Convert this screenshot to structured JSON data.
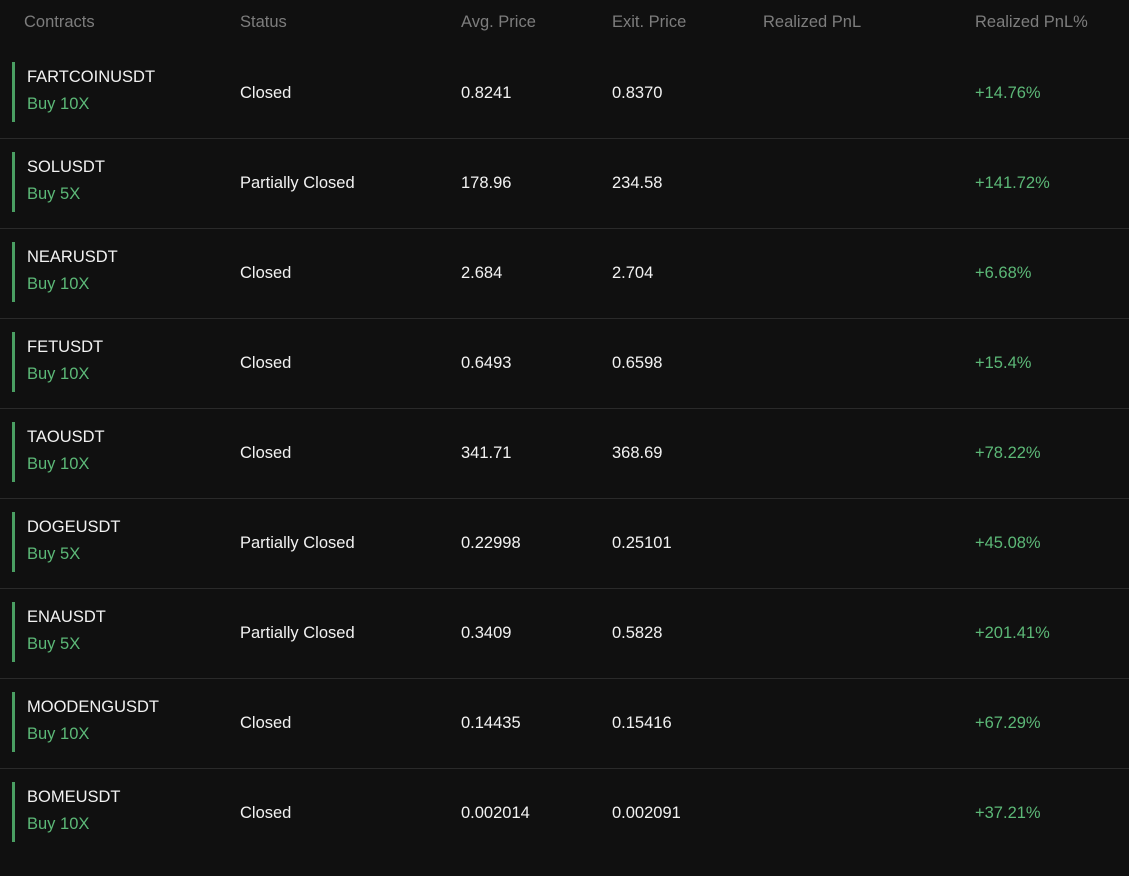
{
  "header": {
    "columns": [
      "Contracts",
      "Status",
      "Avg. Price",
      "Exit. Price",
      "Realized PnL",
      "Realized PnL%"
    ]
  },
  "table": {
    "rows": [
      {
        "contract": "FARTCOINUSDT",
        "side": "Buy 10X",
        "status": "Closed",
        "avg_price": "0.8241",
        "exit_price": "0.8370",
        "pnl_pct": "+14.76%"
      },
      {
        "contract": "SOLUSDT",
        "side": "Buy 5X",
        "status": "Partially Closed",
        "avg_price": "178.96",
        "exit_price": "234.58",
        "pnl_pct": "+141.72%"
      },
      {
        "contract": "NEARUSDT",
        "side": "Buy 10X",
        "status": "Closed",
        "avg_price": "2.684",
        "exit_price": "2.704",
        "pnl_pct": "+6.68%"
      },
      {
        "contract": "FETUSDT",
        "side": "Buy 10X",
        "status": "Closed",
        "avg_price": "0.6493",
        "exit_price": "0.6598",
        "pnl_pct": "+15.4%"
      },
      {
        "contract": "TAOUSDT",
        "side": "Buy 10X",
        "status": "Closed",
        "avg_price": "341.71",
        "exit_price": "368.69",
        "pnl_pct": "+78.22%"
      },
      {
        "contract": "DOGEUSDT",
        "side": "Buy 5X",
        "status": "Partially Closed",
        "avg_price": "0.22998",
        "exit_price": "0.25101",
        "pnl_pct": "+45.08%"
      },
      {
        "contract": "ENAUSDT",
        "side": "Buy 5X",
        "status": "Partially Closed",
        "avg_price": "0.3409",
        "exit_price": "0.5828",
        "pnl_pct": "+201.41%"
      },
      {
        "contract": "MOODENGUSDT",
        "side": "Buy 10X",
        "status": "Closed",
        "avg_price": "0.14435",
        "exit_price": "0.15416",
        "pnl_pct": "+67.29%"
      },
      {
        "contract": "BOMEUSDT",
        "side": "Buy 10X",
        "status": "Closed",
        "avg_price": "0.002014",
        "exit_price": "0.002091",
        "pnl_pct": "+37.21%"
      }
    ]
  }
}
